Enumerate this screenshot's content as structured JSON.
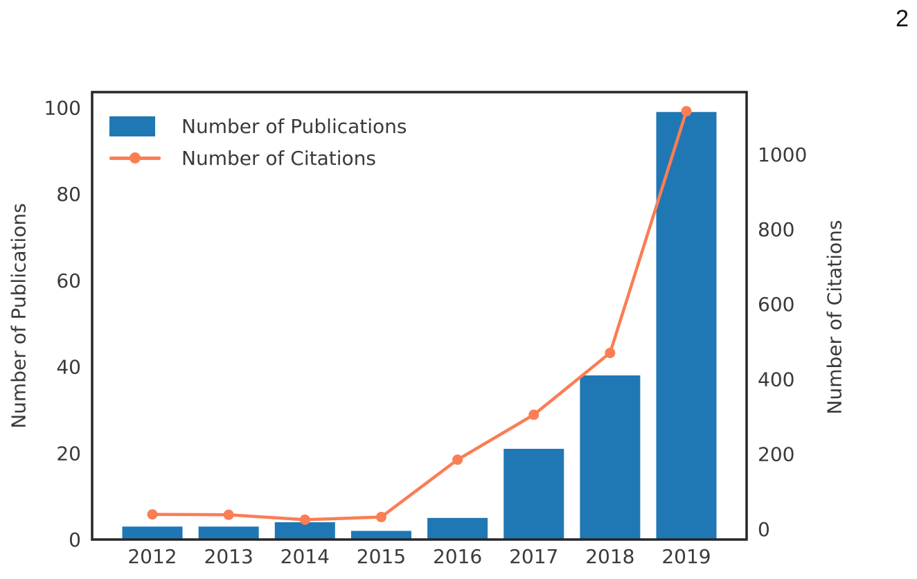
{
  "page": {
    "number": "2"
  },
  "colors": {
    "bar_blue": "#1f77b4",
    "line_orange": "#fb7d54",
    "spine": "#262626",
    "text": "#3a3a3a",
    "background": "#ffffff"
  },
  "chart_data": {
    "type": "bar",
    "title": "",
    "categories": [
      "2012",
      "2013",
      "2014",
      "2015",
      "2016",
      "2017",
      "2018",
      "2019"
    ],
    "series": [
      {
        "name": "Number of Publications",
        "type": "bar",
        "axis": "left",
        "color": "#1f77b4",
        "values": [
          3,
          3,
          4,
          2,
          5,
          21,
          38,
          99
        ]
      },
      {
        "name": "Number of Citations",
        "type": "line",
        "axis": "right",
        "color": "#fb7d54",
        "values": [
          39,
          38,
          25,
          32,
          185,
          305,
          470,
          1115
        ]
      }
    ],
    "left_axis": {
      "label": "Number of Publications",
      "ticks": [
        0,
        20,
        40,
        60,
        80,
        100
      ],
      "range": [
        0,
        103.6
      ]
    },
    "right_axis": {
      "label": "Number of Citations",
      "ticks": [
        0,
        200,
        400,
        600,
        800,
        1000
      ],
      "range": [
        -28,
        1166
      ]
    },
    "x_axis": {
      "ticks": [
        "2012",
        "2013",
        "2014",
        "2015",
        "2016",
        "2017",
        "2018",
        "2019"
      ]
    },
    "legend": {
      "position": "upper-left",
      "frame": false,
      "entries": [
        "Number of Publications",
        "Number of Citations"
      ]
    },
    "grid": false
  }
}
